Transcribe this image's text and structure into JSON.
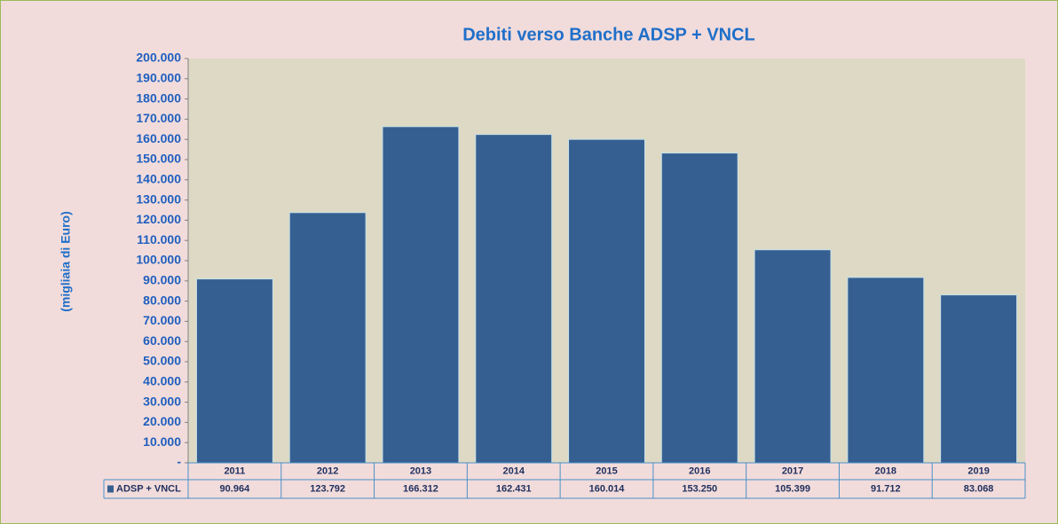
{
  "chart_data": {
    "type": "bar",
    "title": "Debiti verso Banche ADSP + VNCL",
    "y_label": "(migliaia di Euro)",
    "categories": [
      "2011",
      "2012",
      "2013",
      "2014",
      "2015",
      "2016",
      "2017",
      "2018",
      "2019"
    ],
    "series": [
      {
        "name": "ADSP + VNCL",
        "color": "#365f91",
        "values": [
          90964,
          123792,
          166312,
          162431,
          160014,
          153250,
          105399,
          91712,
          83068
        ],
        "value_labels": [
          "90.964",
          "123.792",
          "166.312",
          "162.431",
          "160.014",
          "153.250",
          "105.399",
          "91.712",
          "83.068"
        ]
      }
    ],
    "ylim": [
      0,
      200000
    ],
    "yticks": [
      {
        "value": 0,
        "label": "-"
      },
      {
        "value": 10000,
        "label": "10.000"
      },
      {
        "value": 20000,
        "label": "20.000"
      },
      {
        "value": 30000,
        "label": "30.000"
      },
      {
        "value": 40000,
        "label": "40.000"
      },
      {
        "value": 50000,
        "label": "50.000"
      },
      {
        "value": 60000,
        "label": "60.000"
      },
      {
        "value": 70000,
        "label": "70.000"
      },
      {
        "value": 80000,
        "label": "80.000"
      },
      {
        "value": 90000,
        "label": "90.000"
      },
      {
        "value": 100000,
        "label": "100.000"
      },
      {
        "value": 110000,
        "label": "110.000"
      },
      {
        "value": 120000,
        "label": "120.000"
      },
      {
        "value": 130000,
        "label": "130.000"
      },
      {
        "value": 140000,
        "label": "140.000"
      },
      {
        "value": 150000,
        "label": "150.000"
      },
      {
        "value": 160000,
        "label": "160.000"
      },
      {
        "value": 170000,
        "label": "170.000"
      },
      {
        "value": 180000,
        "label": "180.000"
      },
      {
        "value": 190000,
        "label": "190.000"
      },
      {
        "value": 200000,
        "label": "200.000"
      }
    ],
    "grid": false
  }
}
